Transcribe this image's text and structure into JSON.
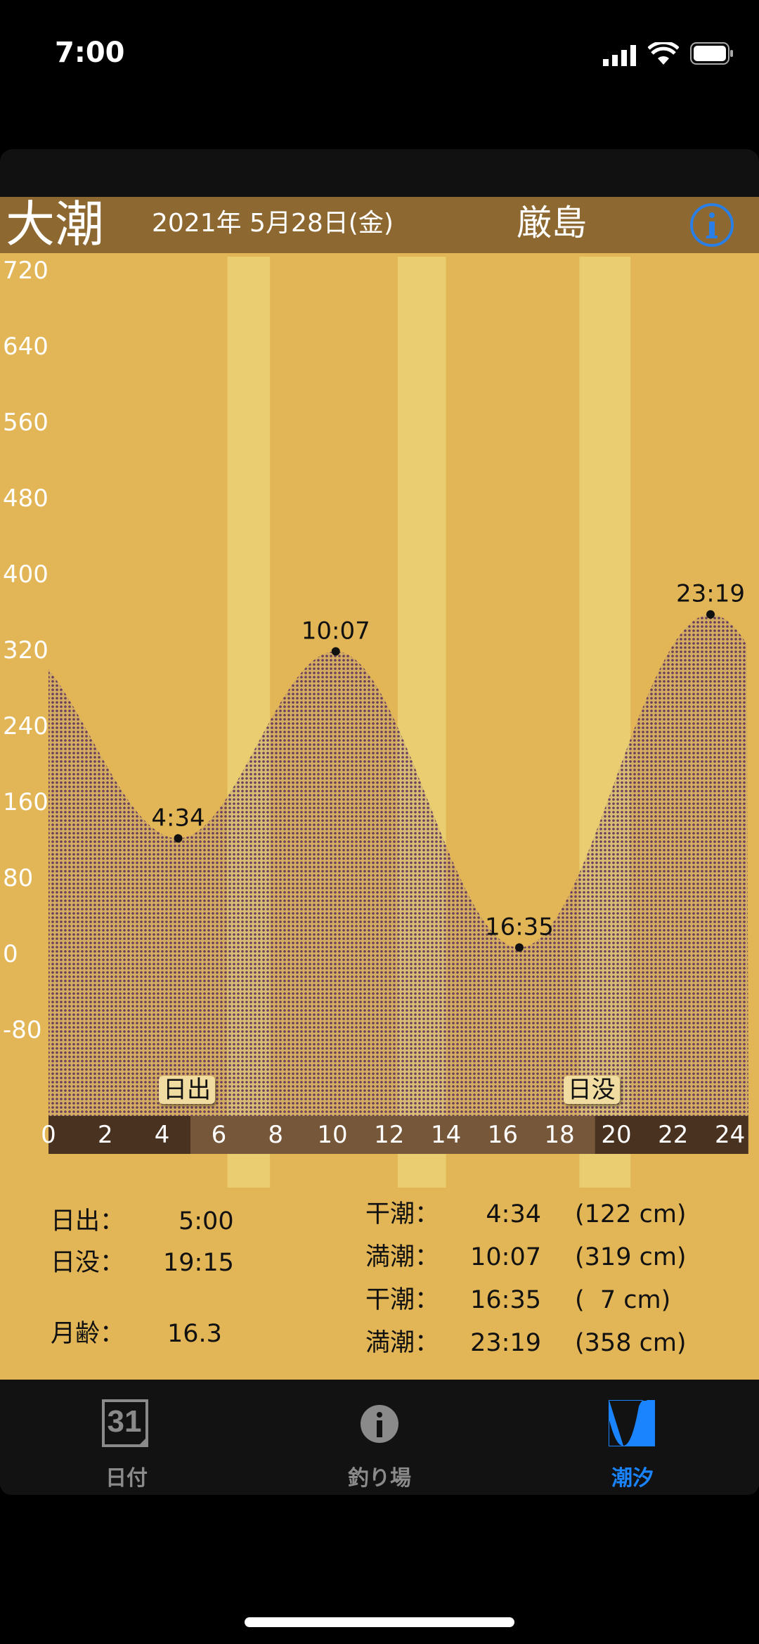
{
  "status_bar": {
    "time": "7:00"
  },
  "header": {
    "tide_type": "大潮",
    "date": "2021年 5月28日(金)",
    "location": "厳島",
    "info_icon": "info-circle-icon",
    "info_color": "#2a7fe6"
  },
  "chart_data": {
    "type": "area",
    "x_unit": "hour",
    "xlim": [
      0,
      24
    ],
    "ylim": [
      -80,
      720
    ],
    "x_ticks": [
      "0",
      "2",
      "4",
      "6",
      "8",
      "10",
      "12",
      "14",
      "16",
      "18",
      "20",
      "22",
      "24"
    ],
    "y_ticks": [
      "720",
      "640",
      "560",
      "480",
      "400",
      "320",
      "240",
      "160",
      "80",
      "0",
      "-80"
    ],
    "extremes": [
      {
        "label": "4:34",
        "hour": 4.567,
        "value": 122
      },
      {
        "label": "10:07",
        "hour": 10.117,
        "value": 319
      },
      {
        "label": "16:35",
        "hour": 16.583,
        "value": 7
      },
      {
        "label": "23:19",
        "hour": 23.317,
        "value": 358
      }
    ],
    "sunrise": {
      "label": "日出",
      "hour": 5.0
    },
    "sunset": {
      "label": "日没",
      "hour": 19.25
    },
    "fill_color": "#5a2f5c"
  },
  "info": {
    "sunrise_label": "日出：",
    "sunrise": "5:00",
    "sunset_label": "日没：",
    "sunset": "19:15",
    "moon_age_label": "月齢：",
    "moon_age": "16.3",
    "tides": [
      {
        "type": "干潮：",
        "time": "4:34",
        "height": "(122 cm)"
      },
      {
        "type": "満潮：",
        "time": "10:07",
        "height": "(319 cm)"
      },
      {
        "type": "干潮：",
        "time": "16:35",
        "height": "(  7 cm)"
      },
      {
        "type": "満潮：",
        "time": "23:19",
        "height": "(358 cm)"
      }
    ]
  },
  "tabs": [
    {
      "label": "日付",
      "icon": "calendar-31-icon",
      "active": false
    },
    {
      "label": "釣り場",
      "icon": "info-icon",
      "active": false
    },
    {
      "label": "潮汐",
      "icon": "tide-wave-icon",
      "active": true
    }
  ],
  "colors": {
    "active_tab": "#1a84ff",
    "inactive_tab": "#8a8a8a",
    "header": "#8d6830",
    "background": "#e2b656"
  }
}
